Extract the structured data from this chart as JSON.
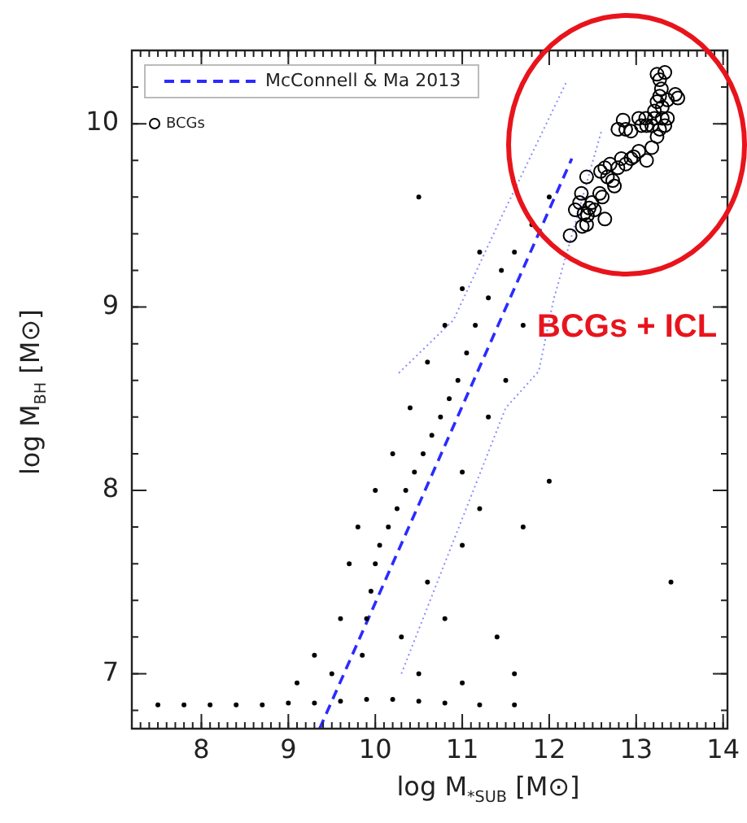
{
  "chart_data": {
    "type": "scatter",
    "xlabel": "log M$_{*SUB}$ [M⊙]",
    "ylabel": "log M$_{BH}$ [M⊙]",
    "xlim": [
      7.2,
      14.05
    ],
    "ylim": [
      6.7,
      10.4
    ],
    "xticks": [
      8,
      9,
      10,
      11,
      12,
      13,
      14
    ],
    "yticks": [
      7,
      8,
      9,
      10
    ],
    "grid": false,
    "legend": "top left",
    "annotations": [
      "BCGs + ICL"
    ],
    "series": [
      {
        "type": "scatter",
        "color": "#000000",
        "marker": "circle",
        "x": [
          7.5,
          7.8,
          8.1,
          8.4,
          8.7,
          9.0,
          9.3,
          9.6,
          9.9,
          10.2,
          10.5,
          10.8,
          11.2,
          11.6,
          9.85,
          9.9,
          9.95,
          10.0,
          10.05,
          10.15,
          10.25,
          10.35,
          10.45,
          10.55,
          10.65,
          10.75,
          10.85,
          10.95,
          11.05,
          11.15,
          11.3,
          11.45,
          11.6,
          11.8,
          12.0,
          9.6,
          9.7,
          9.8,
          10.0,
          10.2,
          10.4,
          10.6,
          10.8,
          11.0,
          11.2,
          9.5,
          9.3,
          9.1,
          10.3,
          10.6,
          10.8,
          11.0,
          11.2,
          11.0,
          11.3,
          11.5,
          11.7,
          10.5,
          11.0,
          11.4,
          11.6,
          10.5,
          13.4,
          12.0,
          11.7
        ],
        "values": [
          6.83,
          6.83,
          6.83,
          6.83,
          6.83,
          6.84,
          6.84,
          6.85,
          6.86,
          6.86,
          6.85,
          6.84,
          6.83,
          6.83,
          7.1,
          7.3,
          7.45,
          7.6,
          7.7,
          7.8,
          7.9,
          8.0,
          8.1,
          8.2,
          8.3,
          8.4,
          8.5,
          8.6,
          8.75,
          8.9,
          9.05,
          9.2,
          9.3,
          9.45,
          9.6,
          7.3,
          7.6,
          7.8,
          8.0,
          8.2,
          8.45,
          8.7,
          8.9,
          9.1,
          9.3,
          7.0,
          7.1,
          6.95,
          7.2,
          7.5,
          7.3,
          7.7,
          7.9,
          8.1,
          8.4,
          8.6,
          8.9,
          7.0,
          6.95,
          7.2,
          7.0,
          9.6,
          7.5,
          8.05,
          7.8
        ]
      },
      {
        "type": "scatter",
        "name": "BCGs",
        "color": "#000000",
        "marker": "circle",
        "x": [
          12.24,
          12.3,
          12.35,
          12.37,
          12.4,
          12.43,
          12.38,
          12.46,
          12.49,
          12.44,
          12.52,
          12.61,
          12.64,
          12.58,
          12.59,
          12.64,
          12.7,
          12.67,
          12.75,
          12.73,
          12.79,
          12.83,
          12.88,
          12.94,
          12.97,
          13.03,
          13.12,
          13.18,
          13.24,
          13.27,
          13.18,
          13.11,
          13.03,
          12.94,
          12.88,
          12.79,
          12.85,
          13.21,
          13.24,
          13.27,
          13.29,
          13.27,
          13.24,
          13.33,
          13.3,
          13.33,
          13.36,
          13.45,
          13.48,
          13.21,
          13.12,
          13.06,
          13.3,
          13.36,
          12.43
        ],
        "values": [
          9.39,
          9.53,
          9.57,
          9.62,
          9.51,
          9.45,
          9.44,
          9.54,
          9.57,
          9.5,
          9.53,
          9.6,
          9.48,
          9.62,
          9.74,
          9.76,
          9.78,
          9.71,
          9.66,
          9.69,
          9.76,
          9.81,
          9.78,
          9.81,
          9.82,
          9.85,
          9.8,
          9.87,
          9.93,
          9.97,
          9.99,
          10.03,
          10.03,
          9.96,
          9.97,
          9.97,
          10.02,
          10.07,
          10.12,
          10.15,
          10.19,
          10.24,
          10.27,
          10.28,
          10.09,
          9.99,
          10.13,
          10.16,
          10.14,
          10.03,
          9.99,
          9.99,
          10.03,
          10.03,
          9.71
        ]
      },
      {
        "type": "line",
        "name": "McConnell & Ma 2013",
        "color": "#2b2bff",
        "marker": "none",
        "line_style": "dashed",
        "x": [
          9.36,
          12.26
        ],
        "values": [
          6.7,
          9.81
        ]
      },
      {
        "type": "line",
        "color": "#8c8cff",
        "marker": "none",
        "line_style": "dotted",
        "x": [
          10.27,
          10.9,
          11.45,
          12.2
        ],
        "values": [
          8.64,
          8.93,
          9.49,
          10.23
        ]
      },
      {
        "type": "line",
        "color": "#8c8cff",
        "marker": "none",
        "line_style": "dotted",
        "x": [
          10.3,
          11.5,
          11.88,
          12.05,
          12.6
        ],
        "values": [
          7.0,
          8.45,
          8.65,
          9.04,
          9.96
        ]
      }
    ]
  }
}
